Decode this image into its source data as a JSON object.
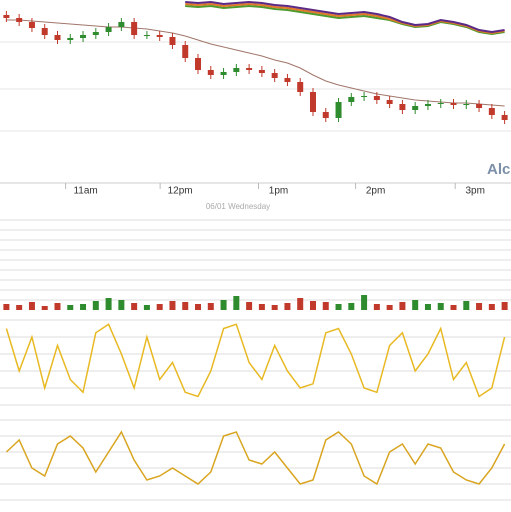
{
  "chart_data": [
    {
      "type": "candlestick",
      "title": "Alc",
      "subtitle": "06/01 Wednesday",
      "open": [
        168,
        165,
        161,
        155,
        148,
        143,
        145,
        148,
        151,
        156,
        161,
        148,
        148,
        146,
        138,
        125,
        113,
        108,
        111,
        115,
        113,
        110,
        105,
        101,
        91,
        71,
        65,
        81,
        86,
        87,
        83,
        79,
        73,
        77,
        79,
        80,
        78,
        79,
        75,
        68
      ],
      "high": [
        172,
        169,
        165,
        159,
        152,
        149,
        152,
        155,
        160,
        165,
        165,
        152,
        152,
        150,
        142,
        129,
        117,
        115,
        119,
        119,
        117,
        114,
        109,
        105,
        95,
        75,
        85,
        90,
        91,
        91,
        87,
        83,
        81,
        83,
        84,
        84,
        83,
        83,
        79,
        72
      ],
      "low": [
        161,
        157,
        151,
        144,
        139,
        139,
        141,
        144,
        147,
        152,
        144,
        144,
        142,
        134,
        121,
        109,
        104,
        104,
        107,
        109,
        106,
        101,
        97,
        87,
        67,
        61,
        61,
        77,
        82,
        79,
        75,
        69,
        69,
        73,
        75,
        74,
        74,
        71,
        64,
        59
      ],
      "close": [
        165,
        161,
        155,
        148,
        143,
        145,
        148,
        151,
        156,
        161,
        148,
        148,
        146,
        138,
        125,
        113,
        108,
        111,
        115,
        113,
        110,
        105,
        101,
        91,
        71,
        65,
        81,
        86,
        87,
        83,
        79,
        73,
        77,
        79,
        80,
        78,
        79,
        75,
        68,
        63
      ],
      "up_color": "#2e8b2e",
      "down_color": "#c0392b",
      "series": [
        {
          "color": "#a0766a",
          "values": [
            163,
            163,
            162,
            161,
            160,
            159,
            158,
            157,
            156,
            156,
            155,
            154,
            152,
            150,
            147,
            143,
            139,
            136,
            133,
            130,
            127,
            123,
            120,
            115,
            108,
            102,
            98,
            95,
            92,
            89,
            87,
            85,
            83,
            82,
            81,
            80,
            80,
            79,
            78,
            77
          ]
        },
        {
          "color": "#4f9a2f",
          "values": [
            null,
            null,
            null,
            null,
            null,
            null,
            null,
            null,
            null,
            null,
            null,
            null,
            null,
            null,
            177,
            176,
            177,
            175,
            176,
            177,
            176,
            174,
            173,
            171,
            169,
            167,
            165,
            166,
            167,
            165,
            163,
            159,
            156,
            157,
            161,
            159,
            156,
            151,
            149,
            151
          ]
        },
        {
          "color": "#e0782a",
          "values": [
            null,
            null,
            null,
            null,
            null,
            null,
            null,
            null,
            null,
            null,
            null,
            null,
            null,
            null,
            179,
            178,
            179,
            177,
            178,
            179,
            178,
            176,
            175,
            173,
            171,
            169,
            167,
            168,
            169,
            167,
            164,
            160,
            157,
            158,
            162,
            160,
            157,
            152,
            150,
            152
          ]
        },
        {
          "color": "#5b2a86",
          "values": [
            null,
            null,
            null,
            null,
            null,
            null,
            null,
            null,
            null,
            null,
            null,
            null,
            null,
            null,
            181,
            180,
            181,
            179,
            180,
            181,
            180,
            178,
            177,
            175,
            173,
            171,
            169,
            170,
            171,
            169,
            166,
            161,
            158,
            159,
            163,
            161,
            158,
            153,
            151,
            153
          ]
        }
      ],
      "ylim": [
        0,
        183
      ],
      "yticks": [
        52,
        94,
        141
      ],
      "grid": true,
      "xlim": [
        -0.5,
        39.5
      ],
      "xticks": [
        {
          "value": 6.2,
          "label": "11am"
        },
        {
          "value": 13.6,
          "label": "12pm"
        },
        {
          "value": 21.3,
          "label": "1pm"
        },
        {
          "value": 28.9,
          "label": "2pm"
        },
        {
          "value": 36.7,
          "label": "3pm"
        }
      ]
    },
    {
      "type": "bar",
      "values": [
        6,
        5,
        8,
        4,
        7,
        5,
        6,
        9,
        12,
        10,
        7,
        5,
        6,
        9,
        8,
        6,
        7,
        10,
        14,
        8,
        6,
        5,
        7,
        12,
        9,
        8,
        6,
        7,
        15,
        6,
        5,
        8,
        10,
        6,
        7,
        5,
        9,
        7,
        6,
        8
      ],
      "ylim": [
        0,
        95
      ],
      "yticks": [
        10,
        20,
        30,
        40,
        50,
        60,
        70,
        80,
        90
      ],
      "grid": true
    },
    {
      "type": "line",
      "color": "#e8b923",
      "values": [
        90,
        40,
        80,
        20,
        70,
        30,
        15,
        85,
        95,
        60,
        20,
        80,
        30,
        50,
        15,
        10,
        40,
        90,
        95,
        50,
        30,
        70,
        40,
        20,
        25,
        85,
        90,
        60,
        20,
        15,
        70,
        85,
        40,
        60,
        90,
        30,
        50,
        10,
        20,
        80
      ],
      "ylim": [
        0,
        100
      ],
      "yticks": [
        0,
        20,
        40,
        60,
        80,
        100
      ],
      "grid": true
    },
    {
      "type": "line",
      "color": "#d9a520",
      "values": [
        60,
        75,
        40,
        30,
        70,
        80,
        65,
        35,
        60,
        85,
        50,
        25,
        30,
        40,
        30,
        20,
        35,
        80,
        85,
        50,
        45,
        60,
        40,
        20,
        25,
        75,
        85,
        70,
        30,
        20,
        60,
        70,
        45,
        70,
        65,
        35,
        25,
        20,
        40,
        70
      ],
      "ylim": [
        0,
        100
      ],
      "yticks": [
        0,
        20,
        40,
        60,
        80,
        100
      ],
      "grid": true
    }
  ]
}
